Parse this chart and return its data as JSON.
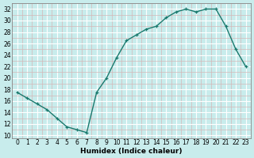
{
  "x": [
    0,
    1,
    2,
    3,
    4,
    5,
    6,
    7,
    8,
    9,
    10,
    11,
    12,
    13,
    14,
    15,
    16,
    17,
    18,
    19,
    20,
    21,
    22,
    23
  ],
  "y": [
    17.5,
    16.5,
    15.5,
    14.5,
    13,
    11.5,
    11,
    10.5,
    17.5,
    20,
    23.5,
    26.5,
    27.5,
    28.5,
    29,
    30.5,
    31.5,
    32,
    31.5,
    32,
    32,
    29,
    25,
    22
  ],
  "line_color": "#1a7a6e",
  "marker": "+",
  "bg_color": "#c8ecec",
  "grid_major_color": "#ffffff",
  "grid_minor_color": "#d4b8b8",
  "xlabel": "Humidex (Indice chaleur)",
  "xlim": [
    -0.5,
    23.5
  ],
  "ylim": [
    9.5,
    33
  ],
  "yticks": [
    10,
    12,
    14,
    16,
    18,
    20,
    22,
    24,
    26,
    28,
    30,
    32
  ],
  "xticks": [
    0,
    1,
    2,
    3,
    4,
    5,
    6,
    7,
    8,
    9,
    10,
    11,
    12,
    13,
    14,
    15,
    16,
    17,
    18,
    19,
    20,
    21,
    22,
    23
  ],
  "xlabel_fontsize": 6.5,
  "tick_fontsize": 5.5,
  "line_width": 1.0,
  "marker_size": 3.5
}
